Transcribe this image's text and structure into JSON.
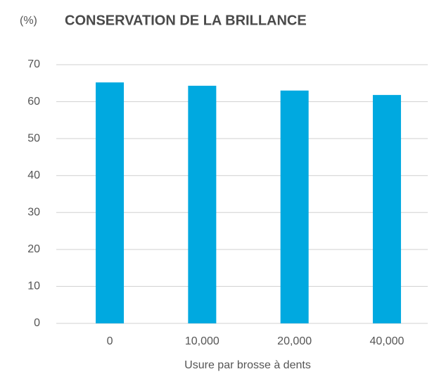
{
  "chart_data": {
    "type": "bar",
    "title": "CONSERVATION DE LA BRILLANCE",
    "y_label": "(%)",
    "x_label": "Usure par brosse à dents",
    "categories": [
      "0",
      "10,000",
      "20,000",
      "40,000"
    ],
    "values": [
      65.2,
      64.3,
      63,
      61.8
    ],
    "color": "#00a9e0",
    "ylim": [
      0,
      70
    ],
    "yticks": [
      0,
      10,
      20,
      30,
      40,
      50,
      60,
      70
    ],
    "grid": true
  }
}
